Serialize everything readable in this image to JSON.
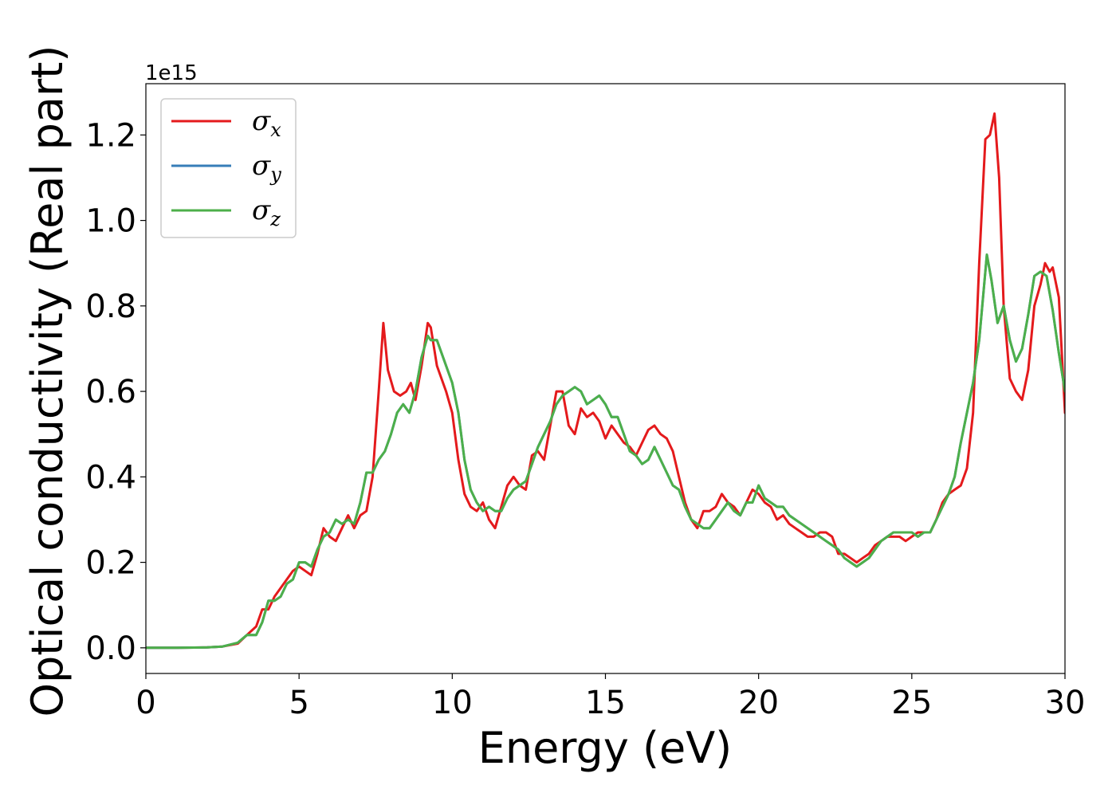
{
  "chart_data": {
    "type": "line",
    "xlabel": "Energy (eV)",
    "ylabel": "Optical conductivity (Real part)",
    "y_offset_label": "1e15",
    "xlim": [
      0,
      30
    ],
    "ylim": [
      -0.06,
      1.32
    ],
    "xticks": [
      0,
      5,
      10,
      15,
      20,
      25,
      30
    ],
    "xtick_labels": [
      "0",
      "5",
      "10",
      "15",
      "20",
      "25",
      "30"
    ],
    "yticks": [
      0.0,
      0.2,
      0.4,
      0.6,
      0.8,
      1.0,
      1.2
    ],
    "ytick_labels": [
      "0.0",
      "0.2",
      "0.4",
      "0.6",
      "0.8",
      "1.0",
      "1.2"
    ],
    "grid": false,
    "legend_position": "top-left",
    "series": [
      {
        "name": "σx",
        "symbol": "σ",
        "subscript": "x",
        "color": "#e41a1c",
        "x": [
          0,
          1,
          2,
          2.5,
          3,
          3.3,
          3.6,
          3.8,
          4.0,
          4.2,
          4.4,
          4.6,
          4.8,
          5.0,
          5.2,
          5.4,
          5.6,
          5.8,
          6.0,
          6.2,
          6.4,
          6.6,
          6.8,
          7.0,
          7.2,
          7.4,
          7.6,
          7.75,
          7.9,
          8.1,
          8.3,
          8.5,
          8.65,
          8.8,
          9.0,
          9.2,
          9.3,
          9.5,
          9.8,
          10.0,
          10.2,
          10.4,
          10.6,
          10.8,
          11.0,
          11.2,
          11.4,
          11.6,
          11.8,
          12.0,
          12.2,
          12.4,
          12.6,
          12.8,
          13.0,
          13.2,
          13.4,
          13.6,
          13.8,
          14.0,
          14.2,
          14.4,
          14.6,
          14.8,
          15.0,
          15.2,
          15.4,
          15.6,
          15.8,
          16.0,
          16.2,
          16.4,
          16.6,
          16.8,
          17.0,
          17.2,
          17.4,
          17.6,
          17.8,
          18.0,
          18.2,
          18.4,
          18.6,
          18.8,
          19.0,
          19.2,
          19.4,
          19.6,
          19.8,
          20.0,
          20.2,
          20.4,
          20.6,
          20.8,
          21.0,
          21.2,
          21.4,
          21.6,
          21.8,
          22.0,
          22.2,
          22.4,
          22.6,
          22.8,
          23.0,
          23.2,
          23.4,
          23.6,
          23.8,
          24.0,
          24.2,
          24.4,
          24.6,
          24.8,
          25.0,
          25.2,
          25.4,
          25.6,
          25.8,
          26.0,
          26.2,
          26.4,
          26.6,
          26.8,
          27.0,
          27.2,
          27.4,
          27.55,
          27.7,
          27.85,
          28.0,
          28.2,
          28.4,
          28.6,
          28.8,
          29.0,
          29.2,
          29.35,
          29.5,
          29.6,
          29.8,
          30.0
        ],
        "y": [
          0.0,
          0.0,
          0.001,
          0.003,
          0.01,
          0.03,
          0.05,
          0.09,
          0.09,
          0.12,
          0.14,
          0.16,
          0.18,
          0.19,
          0.18,
          0.17,
          0.22,
          0.28,
          0.26,
          0.25,
          0.28,
          0.31,
          0.28,
          0.31,
          0.32,
          0.4,
          0.6,
          0.76,
          0.65,
          0.6,
          0.59,
          0.6,
          0.62,
          0.58,
          0.66,
          0.76,
          0.75,
          0.66,
          0.6,
          0.55,
          0.44,
          0.36,
          0.33,
          0.32,
          0.34,
          0.3,
          0.28,
          0.33,
          0.38,
          0.4,
          0.38,
          0.37,
          0.45,
          0.46,
          0.44,
          0.52,
          0.6,
          0.6,
          0.52,
          0.5,
          0.56,
          0.54,
          0.55,
          0.53,
          0.49,
          0.52,
          0.5,
          0.48,
          0.47,
          0.45,
          0.48,
          0.51,
          0.52,
          0.5,
          0.49,
          0.46,
          0.4,
          0.34,
          0.3,
          0.28,
          0.32,
          0.32,
          0.33,
          0.36,
          0.34,
          0.33,
          0.31,
          0.34,
          0.37,
          0.36,
          0.34,
          0.33,
          0.3,
          0.31,
          0.29,
          0.28,
          0.27,
          0.26,
          0.26,
          0.27,
          0.27,
          0.26,
          0.22,
          0.22,
          0.21,
          0.2,
          0.21,
          0.22,
          0.24,
          0.25,
          0.26,
          0.26,
          0.26,
          0.25,
          0.26,
          0.27,
          0.27,
          0.27,
          0.3,
          0.34,
          0.36,
          0.37,
          0.38,
          0.42,
          0.55,
          0.9,
          1.19,
          1.2,
          1.25,
          1.1,
          0.8,
          0.63,
          0.6,
          0.58,
          0.65,
          0.8,
          0.85,
          0.9,
          0.88,
          0.89,
          0.82,
          0.55
        ]
      },
      {
        "name": "σy",
        "symbol": "σ",
        "subscript": "y",
        "color": "#377eb8",
        "x": [
          0,
          1,
          2,
          2.5,
          3,
          3.3,
          3.6,
          3.8,
          4.0,
          4.2,
          4.4,
          4.6,
          4.8,
          5.0,
          5.2,
          5.4,
          5.6,
          5.8,
          6.0,
          6.2,
          6.4,
          6.6,
          6.8,
          7.0,
          7.2,
          7.4,
          7.6,
          7.8,
          8.0,
          8.2,
          8.4,
          8.6,
          8.8,
          9.0,
          9.2,
          9.3,
          9.5,
          9.8,
          10.0,
          10.2,
          10.4,
          10.6,
          10.8,
          11.0,
          11.2,
          11.4,
          11.6,
          11.8,
          12.0,
          12.2,
          12.4,
          12.6,
          12.8,
          13.0,
          13.2,
          13.4,
          13.6,
          13.8,
          14.0,
          14.2,
          14.4,
          14.6,
          14.8,
          15.0,
          15.2,
          15.4,
          15.6,
          15.8,
          16.0,
          16.2,
          16.4,
          16.6,
          16.8,
          17.0,
          17.2,
          17.4,
          17.6,
          17.8,
          18.0,
          18.2,
          18.4,
          18.6,
          18.8,
          19.0,
          19.2,
          19.4,
          19.6,
          19.8,
          20.0,
          20.2,
          20.4,
          20.6,
          20.8,
          21.0,
          21.2,
          21.4,
          21.6,
          21.8,
          22.0,
          22.2,
          22.4,
          22.6,
          22.8,
          23.0,
          23.2,
          23.4,
          23.6,
          23.8,
          24.0,
          24.2,
          24.4,
          24.6,
          24.8,
          25.0,
          25.2,
          25.4,
          25.6,
          25.8,
          26.0,
          26.2,
          26.4,
          26.6,
          26.8,
          27.0,
          27.2,
          27.45,
          27.6,
          27.8,
          28.0,
          28.2,
          28.4,
          28.6,
          28.8,
          29.0,
          29.2,
          29.4,
          29.6,
          29.8,
          30.0
        ],
        "y": [
          0.0,
          0.0,
          0.001,
          0.003,
          0.012,
          0.03,
          0.03,
          0.06,
          0.11,
          0.11,
          0.12,
          0.15,
          0.16,
          0.2,
          0.2,
          0.19,
          0.23,
          0.26,
          0.27,
          0.3,
          0.29,
          0.3,
          0.29,
          0.34,
          0.41,
          0.41,
          0.44,
          0.46,
          0.5,
          0.55,
          0.57,
          0.55,
          0.6,
          0.68,
          0.73,
          0.72,
          0.72,
          0.66,
          0.62,
          0.55,
          0.44,
          0.37,
          0.34,
          0.32,
          0.33,
          0.32,
          0.32,
          0.35,
          0.37,
          0.38,
          0.39,
          0.43,
          0.47,
          0.5,
          0.53,
          0.57,
          0.59,
          0.6,
          0.61,
          0.6,
          0.57,
          0.58,
          0.59,
          0.57,
          0.54,
          0.54,
          0.5,
          0.46,
          0.45,
          0.43,
          0.44,
          0.47,
          0.44,
          0.41,
          0.38,
          0.37,
          0.33,
          0.3,
          0.29,
          0.28,
          0.28,
          0.3,
          0.32,
          0.34,
          0.32,
          0.31,
          0.34,
          0.34,
          0.38,
          0.35,
          0.34,
          0.33,
          0.33,
          0.31,
          0.3,
          0.29,
          0.28,
          0.27,
          0.26,
          0.25,
          0.24,
          0.23,
          0.21,
          0.2,
          0.19,
          0.2,
          0.21,
          0.23,
          0.25,
          0.26,
          0.27,
          0.27,
          0.27,
          0.27,
          0.26,
          0.27,
          0.27,
          0.3,
          0.33,
          0.36,
          0.4,
          0.48,
          0.55,
          0.62,
          0.72,
          0.92,
          0.86,
          0.76,
          0.8,
          0.72,
          0.67,
          0.7,
          0.78,
          0.87,
          0.88,
          0.87,
          0.79,
          0.69,
          0.6
        ]
      },
      {
        "name": "σz",
        "symbol": "σ",
        "subscript": "z",
        "color": "#4daf4a",
        "x": [
          0,
          1,
          2,
          2.5,
          3,
          3.3,
          3.6,
          3.8,
          4.0,
          4.2,
          4.4,
          4.6,
          4.8,
          5.0,
          5.2,
          5.4,
          5.6,
          5.8,
          6.0,
          6.2,
          6.4,
          6.6,
          6.8,
          7.0,
          7.2,
          7.4,
          7.6,
          7.8,
          8.0,
          8.2,
          8.4,
          8.6,
          8.8,
          9.0,
          9.2,
          9.3,
          9.5,
          9.8,
          10.0,
          10.2,
          10.4,
          10.6,
          10.8,
          11.0,
          11.2,
          11.4,
          11.6,
          11.8,
          12.0,
          12.2,
          12.4,
          12.6,
          12.8,
          13.0,
          13.2,
          13.4,
          13.6,
          13.8,
          14.0,
          14.2,
          14.4,
          14.6,
          14.8,
          15.0,
          15.2,
          15.4,
          15.6,
          15.8,
          16.0,
          16.2,
          16.4,
          16.6,
          16.8,
          17.0,
          17.2,
          17.4,
          17.6,
          17.8,
          18.0,
          18.2,
          18.4,
          18.6,
          18.8,
          19.0,
          19.2,
          19.4,
          19.6,
          19.8,
          20.0,
          20.2,
          20.4,
          20.6,
          20.8,
          21.0,
          21.2,
          21.4,
          21.6,
          21.8,
          22.0,
          22.2,
          22.4,
          22.6,
          22.8,
          23.0,
          23.2,
          23.4,
          23.6,
          23.8,
          24.0,
          24.2,
          24.4,
          24.6,
          24.8,
          25.0,
          25.2,
          25.4,
          25.6,
          25.8,
          26.0,
          26.2,
          26.4,
          26.6,
          26.8,
          27.0,
          27.2,
          27.45,
          27.6,
          27.8,
          28.0,
          28.2,
          28.4,
          28.6,
          28.8,
          29.0,
          29.2,
          29.4,
          29.6,
          29.8,
          30.0
        ],
        "y": [
          0.0,
          0.0,
          0.001,
          0.003,
          0.012,
          0.03,
          0.03,
          0.06,
          0.11,
          0.11,
          0.12,
          0.15,
          0.16,
          0.2,
          0.2,
          0.19,
          0.23,
          0.26,
          0.27,
          0.3,
          0.29,
          0.3,
          0.29,
          0.34,
          0.41,
          0.41,
          0.44,
          0.46,
          0.5,
          0.55,
          0.57,
          0.55,
          0.6,
          0.68,
          0.73,
          0.72,
          0.72,
          0.66,
          0.62,
          0.55,
          0.44,
          0.37,
          0.34,
          0.32,
          0.33,
          0.32,
          0.32,
          0.35,
          0.37,
          0.38,
          0.39,
          0.43,
          0.47,
          0.5,
          0.53,
          0.57,
          0.59,
          0.6,
          0.61,
          0.6,
          0.57,
          0.58,
          0.59,
          0.57,
          0.54,
          0.54,
          0.5,
          0.46,
          0.45,
          0.43,
          0.44,
          0.47,
          0.44,
          0.41,
          0.38,
          0.37,
          0.33,
          0.3,
          0.29,
          0.28,
          0.28,
          0.3,
          0.32,
          0.34,
          0.32,
          0.31,
          0.34,
          0.34,
          0.38,
          0.35,
          0.34,
          0.33,
          0.33,
          0.31,
          0.3,
          0.29,
          0.28,
          0.27,
          0.26,
          0.25,
          0.24,
          0.23,
          0.21,
          0.2,
          0.19,
          0.2,
          0.21,
          0.23,
          0.25,
          0.26,
          0.27,
          0.27,
          0.27,
          0.27,
          0.26,
          0.27,
          0.27,
          0.3,
          0.33,
          0.36,
          0.4,
          0.48,
          0.55,
          0.62,
          0.72,
          0.92,
          0.86,
          0.76,
          0.8,
          0.72,
          0.67,
          0.7,
          0.78,
          0.87,
          0.88,
          0.87,
          0.79,
          0.69,
          0.6
        ]
      }
    ]
  }
}
